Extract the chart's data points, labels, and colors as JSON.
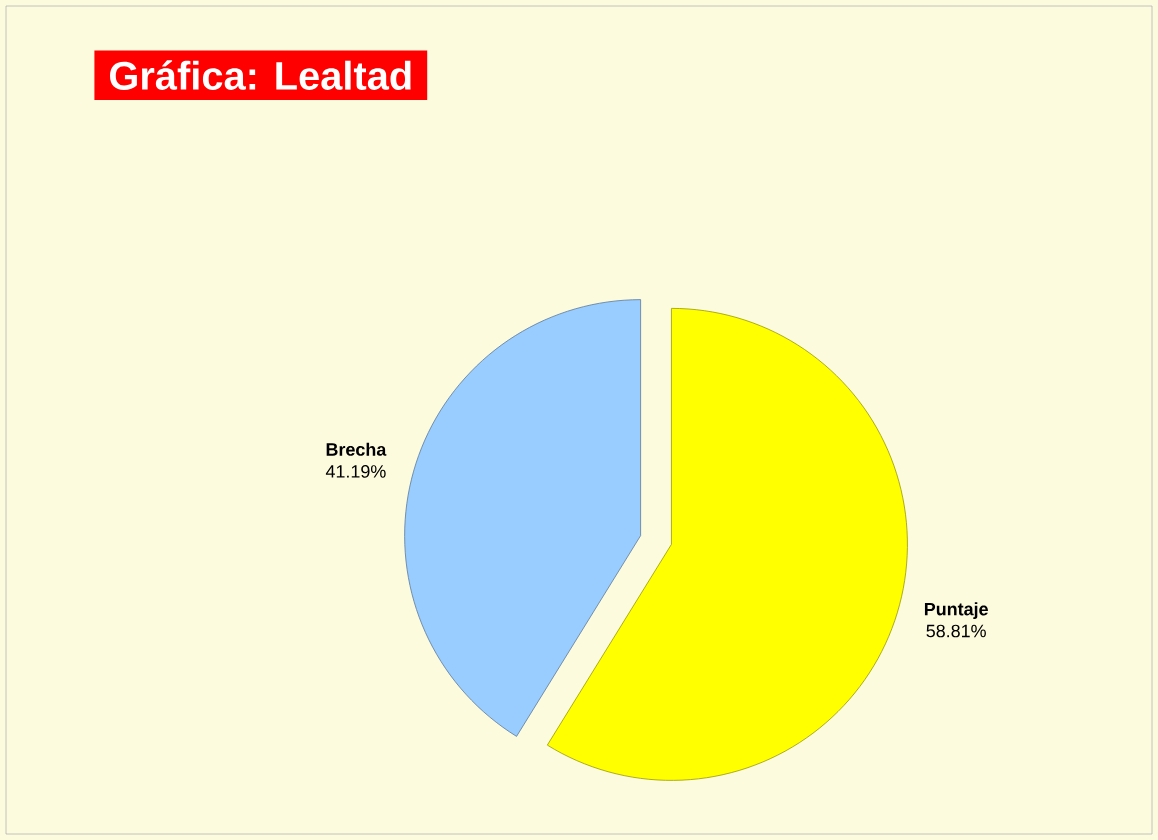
{
  "chart_data": {
    "type": "pie",
    "title": "Gráfica: Lealtad",
    "categories": [
      "Puntaje",
      "Brecha"
    ],
    "values": [
      58.81,
      41.19
    ],
    "value_labels": [
      "58.81%",
      "41.19%"
    ],
    "colors": [
      "#ffff00",
      "#99ccff"
    ]
  }
}
